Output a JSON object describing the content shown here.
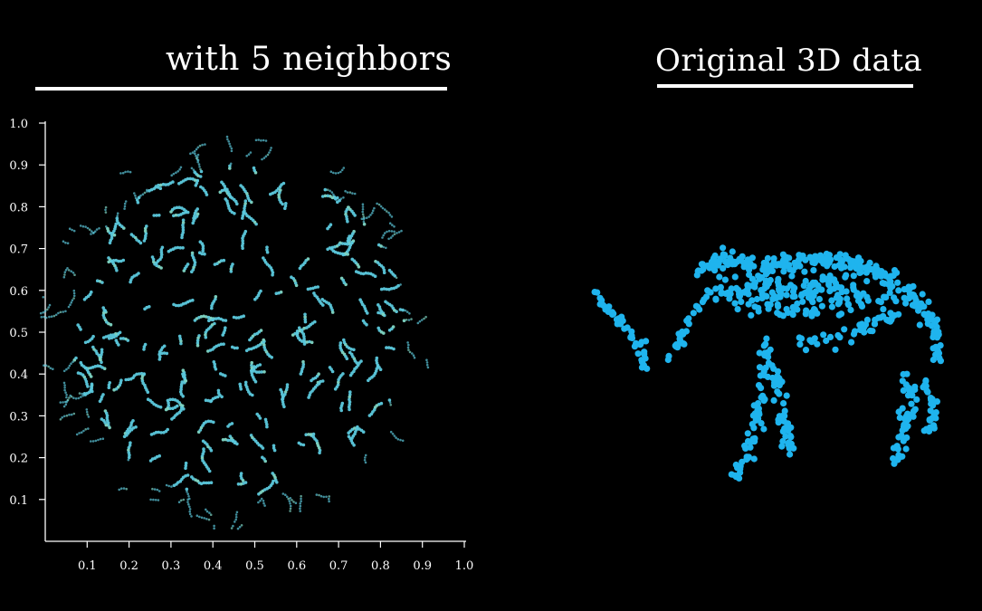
{
  "titles": {
    "left": "with 5 neighbors",
    "right": "Original 3D data"
  },
  "colors": {
    "background": "#000000",
    "embedding_point": "#5bc8dc",
    "embedding_point_alt": "#7fd6c4",
    "original_point": "#1fb4ee",
    "axis": "#ffffff"
  },
  "chart_data": [
    {
      "type": "scatter",
      "title": "with 5 neighbors",
      "xlim": [
        0,
        1.0
      ],
      "ylim": [
        0,
        1.0
      ],
      "x_ticks": [
        "0.1",
        "0.2",
        "0.3",
        "0.4",
        "0.5",
        "0.6",
        "0.7",
        "0.8",
        "0.9",
        "1.0"
      ],
      "y_ticks": [
        "0.1",
        "0.2",
        "0.3",
        "0.4",
        "0.5",
        "0.6",
        "0.7",
        "0.8",
        "0.9",
        "1.0"
      ],
      "grid": false,
      "description_points": "roughly circular cloud of ~1500 points centered near (0.45, 0.5) with radius ~0.45",
      "cloud": {
        "center": [
          0.46,
          0.5
        ],
        "radius_x": 0.47,
        "radius_y": 0.47,
        "count": 1500
      }
    },
    {
      "type": "scatter",
      "title": "Original 3D data",
      "shape": "mammoth-like silhouette (trunk, body, four legs)",
      "count": 900
    }
  ]
}
